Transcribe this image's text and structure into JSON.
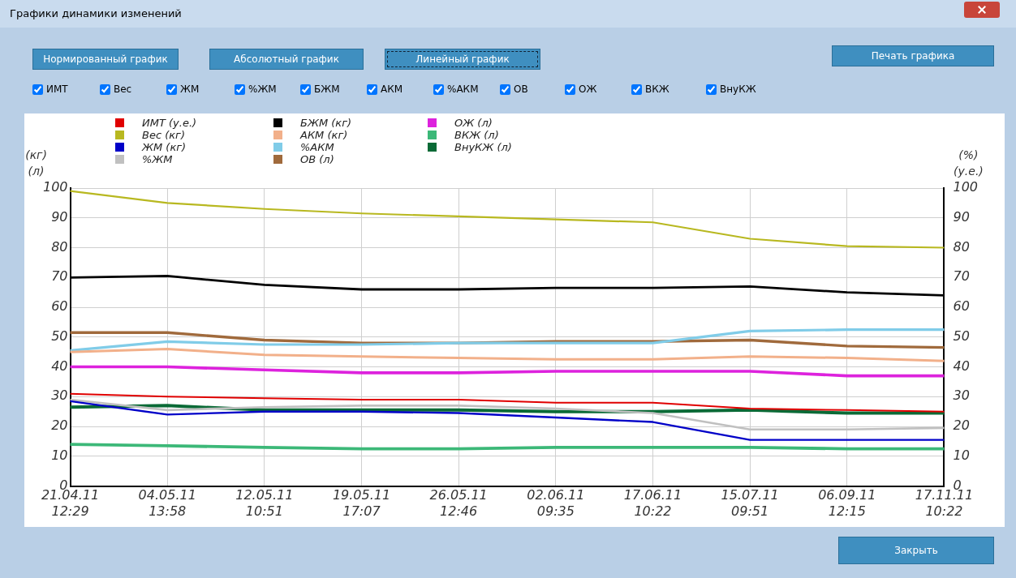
{
  "chart_data": {
    "type": "line",
    "title": "Графики динамики изменений",
    "annotations": [
      "Нормированный график",
      "Абсолютный график",
      "Линейный график",
      "Печать графика",
      "ИМТ",
      "Вес",
      "ЖМ",
      "%ЖМ",
      "БЖМ",
      "АКМ",
      "%АКМ",
      "ОВ",
      "ОЖ",
      "ВКЖ",
      "ВнуКЖ",
      "Закрыть"
    ],
    "ylabel": "(кг)\n(л)",
    "y2label": "(%)\n(у.е.)",
    "categories": [
      "21.04.11\n12:29",
      "04.05.11\n13:58",
      "12.05.11\n10:51",
      "19.05.11\n17:07",
      "26.05.11\n12:46",
      "02.06.11\n09:35",
      "17.06.11\n10:22",
      "15.07.11\n09:51",
      "06.09.11\n12:15",
      "17.11.11\n10:22"
    ],
    "series": [
      {
        "name": "ИМТ (у.е.)",
        "color": "#e00000",
        "values": [
          31,
          30,
          29.5,
          29,
          29,
          28,
          28,
          26,
          25.5,
          25
        ]
      },
      {
        "name": "Вес (кг)",
        "color": "#b8b820",
        "values": [
          99,
          95,
          93,
          91.5,
          90.5,
          89.5,
          88.5,
          83,
          80.5,
          80
        ]
      },
      {
        "name": "ЖМ (кг)",
        "color": "#0000c8",
        "values": [
          28.5,
          24,
          25,
          25,
          24.5,
          23,
          21.5,
          15.5,
          15.5,
          15.5
        ]
      },
      {
        "name": "%ЖМ",
        "color": "#c0c0c0",
        "values": [
          29,
          25.5,
          26.5,
          27,
          27,
          26,
          24.5,
          19,
          19,
          19.5
        ]
      },
      {
        "name": "БЖМ (кг)",
        "color": "#000000",
        "values": [
          70,
          70.5,
          67.5,
          66,
          66,
          66.5,
          66.5,
          67,
          65,
          64
        ]
      },
      {
        "name": "АКМ (кг)",
        "color": "#f2b08a",
        "values": [
          45,
          46,
          44,
          43.5,
          43,
          42.5,
          42.5,
          43.5,
          43,
          42
        ]
      },
      {
        "name": "%АКМ",
        "color": "#80cce8",
        "values": [
          45.5,
          48.5,
          47.5,
          47.5,
          48,
          48,
          48,
          52,
          52.5,
          52.5
        ]
      },
      {
        "name": "ОВ (л)",
        "color": "#a06a3c",
        "values": [
          51.5,
          51.5,
          49,
          48,
          48,
          48.5,
          48.5,
          49,
          47,
          46.5
        ]
      },
      {
        "name": "ОЖ (л)",
        "color": "#dd22dd",
        "values": [
          40,
          40,
          39,
          38,
          38,
          38.5,
          38.5,
          38.5,
          37,
          37
        ]
      },
      {
        "name": "ВКЖ (л)",
        "color": "#3cb878",
        "values": [
          14,
          13.5,
          13,
          12.5,
          12.5,
          13,
          13,
          13,
          12.5,
          12.5
        ]
      },
      {
        "name": "ВнуКЖ (л)",
        "color": "#0a6a36",
        "values": [
          26.5,
          27,
          25.5,
          25.5,
          25.5,
          25,
          25,
          25.5,
          24.5,
          24.5
        ]
      }
    ],
    "ylim": [
      0,
      100
    ],
    "yticks": [
      0,
      10,
      20,
      30,
      40,
      50,
      60,
      70,
      80,
      90,
      100
    ],
    "y2lim": [
      0,
      100
    ],
    "y2ticks": [
      0,
      10,
      20,
      30,
      40,
      50,
      60,
      70,
      80,
      90,
      100
    ],
    "grid": true,
    "legend": "top",
    "marker": "none",
    "line_style": "solid"
  }
}
